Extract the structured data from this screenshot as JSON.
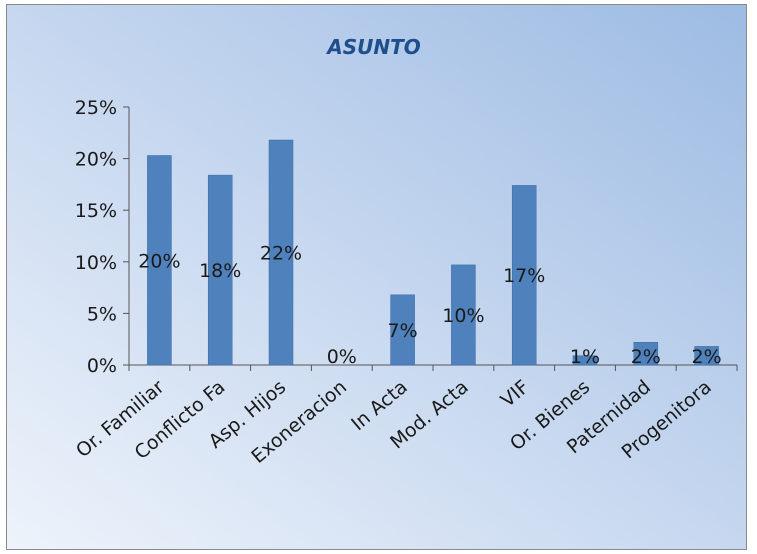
{
  "chart_data": {
    "type": "bar",
    "title": "ASUNTO",
    "categories": [
      "Or. Familiar",
      "Conflicto Fa",
      "Asp. Hijos",
      "Exoneracion",
      "In Acta",
      "Mod. Acta",
      "VIF",
      "Or. Bienes",
      "Paternidad",
      "Progenitora"
    ],
    "values": [
      20.3,
      18.4,
      21.8,
      0,
      6.8,
      9.7,
      17.4,
      0.9,
      2.2,
      1.8
    ],
    "data_labels": [
      "20%",
      "18%",
      "22%",
      "0%",
      "7%",
      "10%",
      "17%",
      "1%",
      "2%",
      "2%"
    ],
    "ylim": [
      0,
      25
    ],
    "yticks": [
      0,
      5,
      10,
      15,
      20,
      25
    ],
    "ytick_labels": [
      "0%",
      "5%",
      "10%",
      "15%",
      "20%",
      "25%"
    ],
    "xlabel": "",
    "ylabel": "",
    "grid": false,
    "legend": "none",
    "colors": {
      "bar": "#4f81bd",
      "bar_edge": "#3a6aa3",
      "background_start": "#eef3fb",
      "background_end": "#9dbbe3",
      "title": "#1f4e8c",
      "text": "#1a1a1a",
      "axis": "#555555"
    }
  }
}
